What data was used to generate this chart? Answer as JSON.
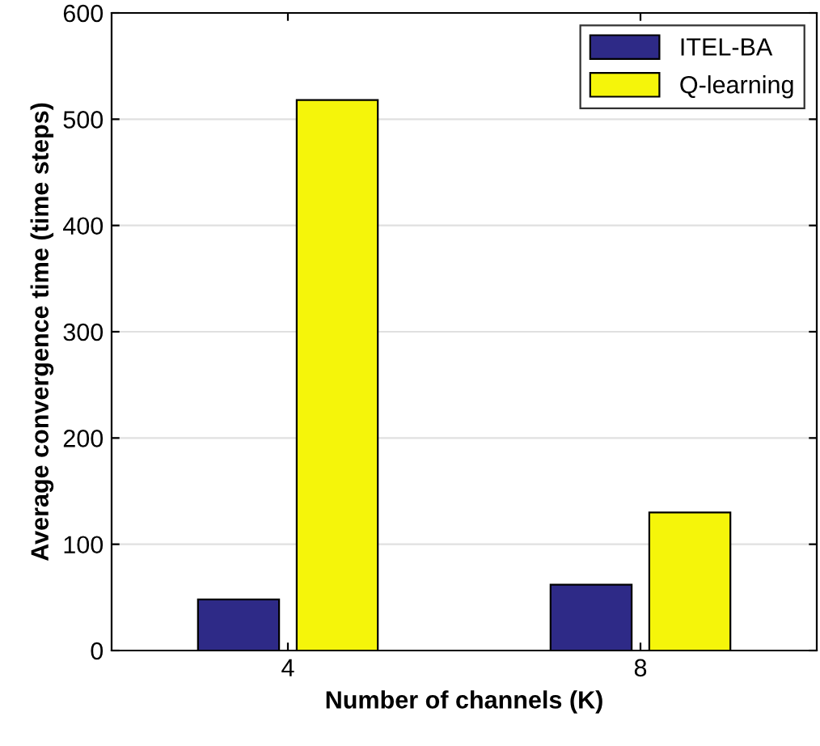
{
  "chart_data": {
    "type": "bar",
    "xlabel": "Number of channels (K)",
    "ylabel": "Average convergence time (time steps)",
    "categories": [
      "4",
      "8"
    ],
    "series": [
      {
        "name": "ITEL-BA",
        "color": "#2e2a87",
        "values": [
          48,
          62
        ]
      },
      {
        "name": "Q-learning",
        "color": "#f5f50a",
        "values": [
          518,
          130
        ]
      }
    ],
    "ylim": [
      0,
      600
    ],
    "yticks": [
      0,
      100,
      200,
      300,
      400,
      500,
      600
    ],
    "grid": "y",
    "legend": "top right"
  }
}
